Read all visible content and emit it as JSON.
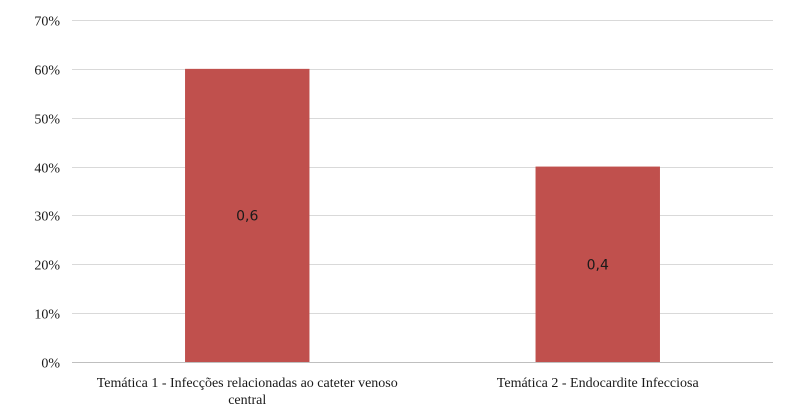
{
  "chart_data": {
    "type": "bar",
    "categories": [
      [
        "Temática 1 - Infecções relacionadas ao cateter venoso",
        "central"
      ],
      [
        "Temática 2 - Endocardite Infecciosa"
      ]
    ],
    "values": [
      0.6,
      0.4
    ],
    "data_labels": [
      "0,6",
      "0,4"
    ],
    "ylim": [
      0,
      0.7
    ],
    "yticks": [
      0,
      0.1,
      0.2,
      0.3,
      0.4,
      0.5,
      0.6,
      0.7
    ],
    "ytick_labels": [
      "0%",
      "10%",
      "20%",
      "30%",
      "40%",
      "50%",
      "60%",
      "70%"
    ],
    "grid": true,
    "legend": "none",
    "bar_color": "#c0504d"
  }
}
